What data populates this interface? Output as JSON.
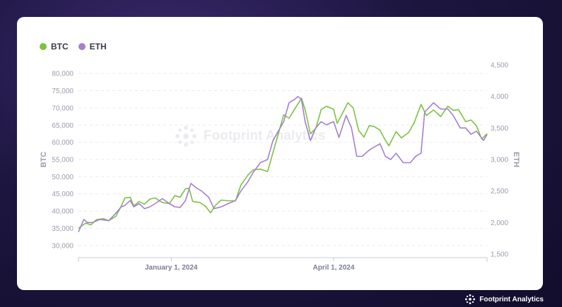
{
  "brand": {
    "name": "Footprint Analytics",
    "watermark": "Footprint Analytics"
  },
  "chart_data": {
    "type": "line",
    "legend_position": "top-left",
    "grid": true,
    "series": [
      {
        "name": "BTC",
        "color": "#7dc240",
        "axis": "left"
      },
      {
        "name": "ETH",
        "color": "#a57fd0",
        "axis": "right"
      }
    ],
    "y_left": {
      "label": "BTC",
      "ticks": [
        30000,
        35000,
        40000,
        45000,
        50000,
        55000,
        60000,
        65000,
        70000,
        75000,
        80000
      ],
      "tick_labels": [
        "30,000",
        "35,000",
        "40,000",
        "45,000",
        "50,000",
        "55,000",
        "60,000",
        "65,000",
        "70,000",
        "75,000",
        "80,000"
      ],
      "range": [
        27500,
        82500
      ]
    },
    "y_right": {
      "label": "ETH",
      "ticks": [
        1500,
        2000,
        2500,
        3000,
        3500,
        4000,
        4500
      ],
      "tick_labels": [
        "1,500",
        "2,000",
        "2,500",
        "3,000",
        "3,500",
        "4,000",
        "4,500"
      ],
      "range": [
        1500,
        4500
      ]
    },
    "x_range": [
      "2023-11-10",
      "2024-06-26"
    ],
    "x_ticks": [
      {
        "date": "2024-01-01",
        "label": "January 1, 2024"
      },
      {
        "date": "2024-04-01",
        "label": "April 1, 2024"
      }
    ],
    "btc_points": [
      [
        "2023-11-10",
        35000
      ],
      [
        "2023-11-14",
        36500
      ],
      [
        "2023-11-17",
        36000
      ],
      [
        "2023-11-20",
        37500
      ],
      [
        "2023-11-24",
        37800
      ],
      [
        "2023-11-27",
        37200
      ],
      [
        "2023-12-01",
        38500
      ],
      [
        "2023-12-04",
        41500
      ],
      [
        "2023-12-06",
        43800
      ],
      [
        "2023-12-09",
        44000
      ],
      [
        "2023-12-11",
        41500
      ],
      [
        "2023-12-14",
        42800
      ],
      [
        "2023-12-17",
        42000
      ],
      [
        "2023-12-20",
        43500
      ],
      [
        "2023-12-23",
        43800
      ],
      [
        "2023-12-27",
        42500
      ],
      [
        "2023-12-31",
        42200
      ],
      [
        "2024-01-03",
        44500
      ],
      [
        "2024-01-06",
        44000
      ],
      [
        "2024-01-09",
        46500
      ],
      [
        "2024-01-11",
        46600
      ],
      [
        "2024-01-13",
        42800
      ],
      [
        "2024-01-17",
        42500
      ],
      [
        "2024-01-20",
        41500
      ],
      [
        "2024-01-23",
        39500
      ],
      [
        "2024-01-26",
        41800
      ],
      [
        "2024-01-29",
        43200
      ],
      [
        "2024-02-02",
        43000
      ],
      [
        "2024-02-06",
        43000
      ],
      [
        "2024-02-09",
        47500
      ],
      [
        "2024-02-13",
        50500
      ],
      [
        "2024-02-16",
        52000
      ],
      [
        "2024-02-20",
        52200
      ],
      [
        "2024-02-24",
        51500
      ],
      [
        "2024-02-27",
        57000
      ],
      [
        "2024-03-01",
        62500
      ],
      [
        "2024-03-04",
        68000
      ],
      [
        "2024-03-07",
        67000
      ],
      [
        "2024-03-10",
        69500
      ],
      [
        "2024-03-14",
        72800
      ],
      [
        "2024-03-16",
        69500
      ],
      [
        "2024-03-19",
        62500
      ],
      [
        "2024-03-22",
        64000
      ],
      [
        "2024-03-25",
        69500
      ],
      [
        "2024-03-28",
        70500
      ],
      [
        "2024-04-01",
        69600
      ],
      [
        "2024-04-03",
        65500
      ],
      [
        "2024-04-06",
        68500
      ],
      [
        "2024-04-09",
        71500
      ],
      [
        "2024-04-12",
        70000
      ],
      [
        "2024-04-15",
        63500
      ],
      [
        "2024-04-18",
        61500
      ],
      [
        "2024-04-21",
        64900
      ],
      [
        "2024-04-24",
        64500
      ],
      [
        "2024-04-27",
        63500
      ],
      [
        "2024-04-30",
        60600
      ],
      [
        "2024-05-02",
        59000
      ],
      [
        "2024-05-06",
        63100
      ],
      [
        "2024-05-09",
        61300
      ],
      [
        "2024-05-13",
        62800
      ],
      [
        "2024-05-16",
        65500
      ],
      [
        "2024-05-20",
        71000
      ],
      [
        "2024-05-23",
        67800
      ],
      [
        "2024-05-27",
        69400
      ],
      [
        "2024-05-31",
        67500
      ],
      [
        "2024-06-04",
        70500
      ],
      [
        "2024-06-07",
        69300
      ],
      [
        "2024-06-10",
        69500
      ],
      [
        "2024-06-14",
        66000
      ],
      [
        "2024-06-17",
        66500
      ],
      [
        "2024-06-20",
        64800
      ],
      [
        "2024-06-23",
        61000
      ],
      [
        "2024-06-26",
        62500
      ]
    ],
    "eth_points": [
      [
        "2023-11-10",
        1850
      ],
      [
        "2023-11-13",
        2050
      ],
      [
        "2023-11-15",
        2000
      ],
      [
        "2023-11-18",
        2000
      ],
      [
        "2023-11-22",
        2050
      ],
      [
        "2023-11-27",
        2030
      ],
      [
        "2023-12-01",
        2150
      ],
      [
        "2023-12-04",
        2250
      ],
      [
        "2023-12-06",
        2270
      ],
      [
        "2023-12-09",
        2350
      ],
      [
        "2023-12-11",
        2250
      ],
      [
        "2023-12-14",
        2300
      ],
      [
        "2023-12-17",
        2220
      ],
      [
        "2023-12-20",
        2250
      ],
      [
        "2023-12-23",
        2300
      ],
      [
        "2023-12-27",
        2380
      ],
      [
        "2023-12-31",
        2300
      ],
      [
        "2024-01-03",
        2250
      ],
      [
        "2024-01-06",
        2240
      ],
      [
        "2024-01-09",
        2350
      ],
      [
        "2024-01-12",
        2620
      ],
      [
        "2024-01-15",
        2550
      ],
      [
        "2024-01-18",
        2500
      ],
      [
        "2024-01-22",
        2400
      ],
      [
        "2024-01-25",
        2220
      ],
      [
        "2024-01-29",
        2250
      ],
      [
        "2024-02-02",
        2300
      ],
      [
        "2024-02-06",
        2350
      ],
      [
        "2024-02-09",
        2500
      ],
      [
        "2024-02-13",
        2650
      ],
      [
        "2024-02-16",
        2800
      ],
      [
        "2024-02-20",
        2950
      ],
      [
        "2024-02-24",
        3000
      ],
      [
        "2024-02-27",
        3300
      ],
      [
        "2024-03-01",
        3450
      ],
      [
        "2024-03-04",
        3600
      ],
      [
        "2024-03-07",
        3900
      ],
      [
        "2024-03-10",
        3950
      ],
      [
        "2024-03-12",
        4000
      ],
      [
        "2024-03-14",
        3950
      ],
      [
        "2024-03-16",
        3600
      ],
      [
        "2024-03-19",
        3300
      ],
      [
        "2024-03-22",
        3500
      ],
      [
        "2024-03-25",
        3600
      ],
      [
        "2024-03-28",
        3550
      ],
      [
        "2024-04-01",
        3600
      ],
      [
        "2024-04-04",
        3350
      ],
      [
        "2024-04-08",
        3700
      ],
      [
        "2024-04-11",
        3500
      ],
      [
        "2024-04-14",
        3050
      ],
      [
        "2024-04-17",
        3050
      ],
      [
        "2024-04-21",
        3150
      ],
      [
        "2024-04-24",
        3200
      ],
      [
        "2024-04-27",
        3250
      ],
      [
        "2024-04-30",
        3050
      ],
      [
        "2024-05-03",
        3000
      ],
      [
        "2024-05-06",
        3100
      ],
      [
        "2024-05-10",
        2950
      ],
      [
        "2024-05-14",
        2950
      ],
      [
        "2024-05-17",
        3050
      ],
      [
        "2024-05-20",
        3100
      ],
      [
        "2024-05-22",
        3750
      ],
      [
        "2024-05-27",
        3900
      ],
      [
        "2024-05-31",
        3800
      ],
      [
        "2024-06-04",
        3800
      ],
      [
        "2024-06-07",
        3700
      ],
      [
        "2024-06-11",
        3500
      ],
      [
        "2024-06-14",
        3500
      ],
      [
        "2024-06-17",
        3400
      ],
      [
        "2024-06-20",
        3450
      ],
      [
        "2024-06-24",
        3300
      ],
      [
        "2024-06-26",
        3400
      ]
    ]
  }
}
